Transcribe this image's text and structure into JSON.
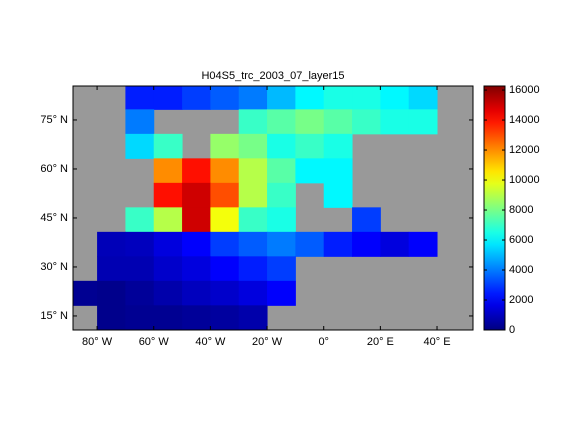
{
  "chart_data": {
    "type": "map",
    "title": "H04S5_trc_2003_07_layer15",
    "colormap": "jet",
    "x": [
      -85,
      -75,
      -65,
      -55,
      -45,
      -35,
      -25,
      -15,
      -5,
      5,
      15,
      25,
      35,
      45
    ],
    "y": [
      82,
      74.5,
      67,
      59.5,
      52,
      44.5,
      37,
      29.5,
      22,
      14.5
    ],
    "cell_size": [
      10,
      7.5
    ],
    "values": [
      [
        null,
        null,
        2500,
        2500,
        3000,
        3500,
        4000,
        5000,
        6000,
        6500,
        6500,
        6000,
        5500,
        null
      ],
      [
        null,
        null,
        4000,
        null,
        null,
        null,
        7000,
        7500,
        8000,
        7500,
        7000,
        6500,
        6500,
        null
      ],
      [
        null,
        null,
        5500,
        7000,
        null,
        8500,
        8000,
        6500,
        7000,
        6500,
        null,
        null,
        null,
        null
      ],
      [
        null,
        null,
        null,
        12000,
        14000,
        12000,
        9000,
        7500,
        6000,
        6000,
        null,
        null,
        null,
        null
      ],
      [
        null,
        null,
        null,
        14000,
        15000,
        13000,
        9000,
        7000,
        null,
        6000,
        null,
        null,
        null,
        null
      ],
      [
        null,
        null,
        7000,
        9000,
        15000,
        10000,
        7000,
        6500,
        null,
        null,
        3000,
        null,
        null,
        null
      ],
      [
        null,
        900,
        1000,
        1500,
        2000,
        3000,
        3500,
        4000,
        3500,
        2500,
        2000,
        1500,
        2000,
        null
      ],
      [
        null,
        800,
        800,
        1200,
        1500,
        2000,
        2500,
        3000,
        null,
        null,
        null,
        null,
        null,
        null
      ],
      [
        300,
        200,
        400,
        700,
        1000,
        1200,
        1500,
        2000,
        null,
        null,
        null,
        null,
        null,
        null
      ],
      [
        null,
        200,
        300,
        300,
        400,
        500,
        700,
        null,
        null,
        null,
        null,
        null,
        null,
        null
      ]
    ],
    "xlim": [
      -88.5,
      52.7
    ],
    "ylim": [
      10.7,
      85.4
    ],
    "xticks": [
      {
        "value": -80,
        "label": "80° W"
      },
      {
        "value": -60,
        "label": "60° W"
      },
      {
        "value": -40,
        "label": "40° W"
      },
      {
        "value": -20,
        "label": "20° W"
      },
      {
        "value": 0,
        "label": "0°"
      },
      {
        "value": 20,
        "label": "20° E"
      },
      {
        "value": 40,
        "label": "40° E"
      }
    ],
    "yticks": [
      {
        "value": 15,
        "label": "15° N"
      },
      {
        "value": 30,
        "label": "30° N"
      },
      {
        "value": 45,
        "label": "45° N"
      },
      {
        "value": 60,
        "label": "60° N"
      },
      {
        "value": 75,
        "label": "75° N"
      }
    ],
    "clim": [
      0,
      16270
    ],
    "cticks": [
      0,
      2000,
      4000,
      6000,
      8000,
      10000,
      12000,
      14000,
      16000
    ],
    "land_color": "#999999"
  }
}
